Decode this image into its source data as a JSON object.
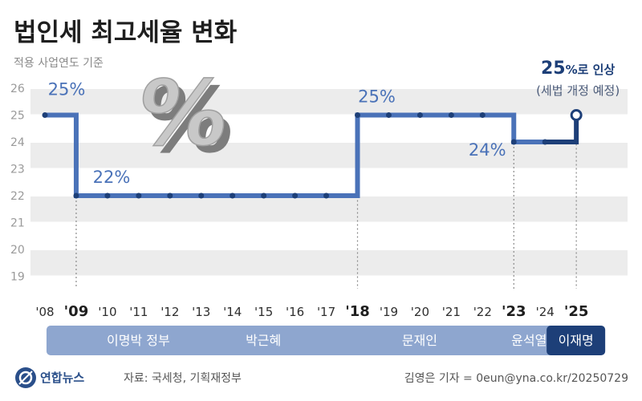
{
  "header": {
    "title": "법인세 최고세율 변화",
    "subtitle": "적용 사업연도 기준"
  },
  "chart_data": {
    "type": "line",
    "step": true,
    "categories": [
      "'08",
      "'09",
      "'10",
      "'11",
      "'12",
      "'13",
      "'14",
      "'15",
      "'16",
      "'17",
      "'18",
      "'19",
      "'20",
      "'21",
      "'22",
      "'23",
      "'24",
      "'25"
    ],
    "bold_ticks": [
      "'09",
      "'18",
      "'23",
      "'25"
    ],
    "values": [
      25,
      22,
      22,
      22,
      22,
      22,
      22,
      22,
      22,
      22,
      25,
      25,
      25,
      25,
      25,
      24,
      24,
      25
    ],
    "ylim": [
      19,
      26
    ],
    "yticks": [
      19,
      20,
      21,
      22,
      23,
      24,
      25,
      26
    ],
    "grid": "horizontal bands",
    "data_labels": [
      {
        "label": "25%",
        "category": "'08"
      },
      {
        "label": "22%",
        "category": "'09"
      },
      {
        "label": "25%",
        "category": "'18"
      },
      {
        "label": "24%",
        "category": "'23"
      }
    ],
    "highlight": {
      "category": "'25",
      "value_text": "25",
      "unit_text": "%로 인상",
      "note": "(세법 개정 예정)"
    },
    "line_color": "#4a72b8",
    "highlight_color": "#1d3f78"
  },
  "governments": [
    {
      "label": "이명박 정부",
      "from": "'09",
      "to": "'13",
      "color": "#8ea6cf"
    },
    {
      "label": "박근혜",
      "from": "'13",
      "to": "'17",
      "color": "#8ea6cf"
    },
    {
      "label": "문재인",
      "from": "'18",
      "to": "'22",
      "color": "#8ea6cf"
    },
    {
      "label": "윤석열",
      "from": "'23",
      "to": "'24",
      "color": "#8ea6cf"
    },
    {
      "label": "이재명",
      "from": "'25",
      "to": "'25",
      "color": "#1d3f78"
    }
  ],
  "decoration": {
    "percent_symbol": "%"
  },
  "footer": {
    "logo_text": "연합뉴스",
    "source": "자료: 국세청, 기획재정부",
    "credit": "김영은 기자 = 0eun@yna.co.kr/20250729"
  }
}
